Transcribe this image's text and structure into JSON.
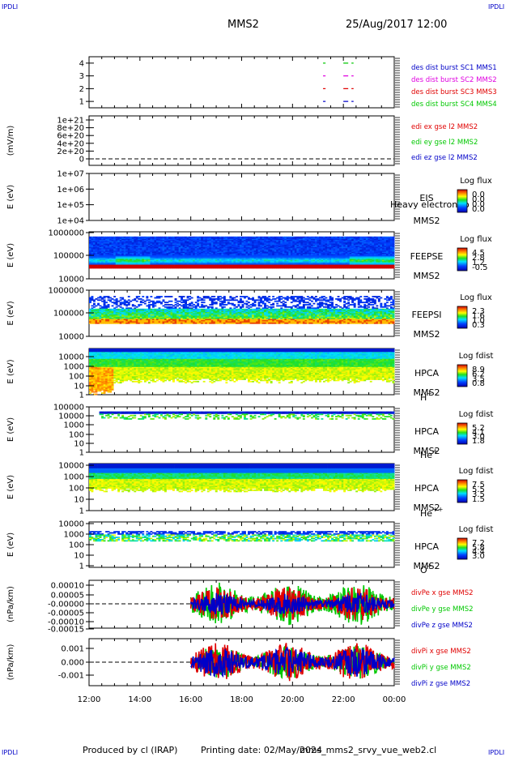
{
  "header": {
    "corner_left": "IPDLI",
    "corner_right": "IPDLI",
    "mission": "MMS2",
    "datetime": "25/Aug/2017 12:00"
  },
  "footer": {
    "corner_left": "IPDLI",
    "corner_right": "IPDLI",
    "produced_by": "Produced by cl (IRAP)",
    "printing_date": "Printing date: 02/May/2024",
    "script": "mms_mms2_srvy_vue_web2.cl"
  },
  "colors": {
    "blue": "#0000c8",
    "red": "#e00000",
    "magenta": "#e000e0",
    "green": "#00c800"
  },
  "chart_data": [
    {
      "type": "line",
      "id": "burst",
      "yticks": [
        "4",
        "3",
        "2",
        "1"
      ],
      "ylim": [
        0.5,
        4.5
      ],
      "legend": [
        "des dist burst SC1 MMS1",
        "des dist burst SC2 MMS2",
        "des dist burst SC3 MMS3",
        "des dist burst SC4 MMS4"
      ],
      "series": [
        {
          "name": "des dist burst SC1 MMS1",
          "y": 1,
          "segments": [
            [
              21.2,
              21.3
            ],
            [
              22.0,
              22.4
            ]
          ]
        },
        {
          "name": "des dist burst SC2 MMS2",
          "y": 2,
          "segments": [
            [
              21.2,
              21.3
            ],
            [
              22.0,
              22.4
            ]
          ]
        },
        {
          "name": "des dist burst SC3 MMS3",
          "y": 3,
          "segments": [
            [
              21.2,
              21.3
            ],
            [
              22.0,
              22.4
            ]
          ]
        },
        {
          "name": "des dist burst SC4 MMS4",
          "y": 4,
          "segments": [
            [
              21.2,
              21.3
            ],
            [
              22.0,
              22.4
            ]
          ]
        }
      ]
    },
    {
      "type": "line",
      "id": "edi",
      "ylabel": "(mV/m)",
      "yticks": [
        "1e+21",
        "8e+20",
        "6e+20",
        "4e+20",
        "2e+20",
        "0"
      ],
      "legend": [
        "edi ex gse l2 MMS2",
        "edi ey gse l2 MMS2",
        "edi ez gse l2 MMS2"
      ]
    },
    {
      "type": "heatmap",
      "id": "eis",
      "ylabel": "E (eV)",
      "yticks": [
        "1e+07",
        "1e+06",
        "1e+05",
        "1e+04"
      ],
      "instrument": [
        "EIS",
        "MMS2"
      ],
      "overlap_label": "Heavy electron to",
      "colorbar_title": "Log flux",
      "colorbar_ticks": [
        "0.0",
        "0.0",
        "0.0",
        "0.0"
      ]
    },
    {
      "type": "heatmap",
      "id": "feeps_e",
      "ylabel": "E (eV)",
      "yticks": [
        "1000000",
        "100000",
        "10000"
      ],
      "instrument": [
        "FEEPSE",
        "MMS2"
      ],
      "colorbar_title": "Log flux",
      "colorbar_ticks": [
        "4.5",
        "2.8",
        "1.2",
        "-0.5"
      ]
    },
    {
      "type": "heatmap",
      "id": "feeps_i",
      "ylabel": "E (eV)",
      "yticks": [
        "1000000",
        "100000",
        "10000"
      ],
      "instrument": [
        "FEEPSI",
        "MMS2"
      ],
      "colorbar_title": "Log flux",
      "colorbar_ticks": [
        "2.3",
        "1.6",
        "1.0",
        "0.3"
      ]
    },
    {
      "type": "heatmap",
      "id": "hpca_h",
      "ylabel": "E (eV)",
      "yticks": [
        "10000",
        "1000",
        "100",
        "10",
        "1"
      ],
      "instrument": [
        "HPCA",
        "MMS2"
      ],
      "species": "H",
      "charge": "+",
      "colorbar_title": "Log fdist",
      "colorbar_ticks": [
        "8.9",
        "6.2",
        "3.5",
        "0.8"
      ]
    },
    {
      "type": "heatmap",
      "id": "hpca_he",
      "ylabel": "E (eV)",
      "yticks": [
        "100000",
        "10000",
        "1000",
        "100",
        "10",
        "1"
      ],
      "instrument": [
        "HPCA",
        "MMS2"
      ],
      "species": "He",
      "charge": "+",
      "colorbar_title": "Log fdist",
      "colorbar_ticks": [
        "5.2",
        "4.1",
        "3.0",
        "1.8"
      ]
    },
    {
      "type": "heatmap",
      "id": "hpca_hepp",
      "ylabel": "E (eV)",
      "yticks": [
        "10000",
        "1000",
        "100",
        "10",
        "1"
      ],
      "instrument": [
        "HPCA",
        "MMS2"
      ],
      "species": "He",
      "charge": "++",
      "colorbar_title": "Log fdist",
      "colorbar_ticks": [
        "7.5",
        "5.5",
        "3.5",
        "1.5"
      ]
    },
    {
      "type": "heatmap",
      "id": "hpca_o",
      "ylabel": "E (eV)",
      "yticks": [
        "10000",
        "1000",
        "100",
        "10",
        "1"
      ],
      "instrument": [
        "HPCA",
        "MMS2"
      ],
      "species": "O",
      "charge": "+",
      "colorbar_title": "Log fdist",
      "colorbar_ticks": [
        "7.2",
        "5.8",
        "4.4",
        "3.0"
      ]
    },
    {
      "type": "line",
      "id": "divpe",
      "ylabel": "(nPa/km)",
      "yticks": [
        "0.00010",
        "0.00005",
        "-0.00000",
        "-0.00005",
        "-0.00010",
        "-0.00015"
      ],
      "legend": [
        "divPe x gse MMS2",
        "divPe y gse MMS2",
        "divPe z gse MMS2"
      ],
      "data_start_hour": 16.0
    },
    {
      "type": "line",
      "id": "divpi",
      "ylabel": "(nPa/km)",
      "yticks": [
        "0.001",
        "0.000",
        "-0.001"
      ],
      "legend": [
        "divPi x gse MMS2",
        "divPi y gse MMS2",
        "divPi z gse MMS2"
      ],
      "data_start_hour": 16.0
    }
  ],
  "xaxis": {
    "ticks": [
      "12:00",
      "14:00",
      "16:00",
      "18:00",
      "20:00",
      "22:00",
      "00:00"
    ],
    "xlim": [
      12,
      24
    ]
  }
}
